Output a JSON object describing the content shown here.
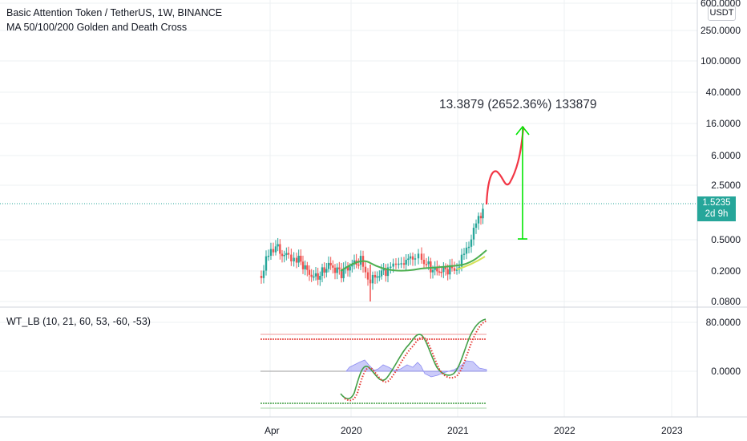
{
  "chart": {
    "title": "Basic Attention Token / TetherUS, 1W, BINANCE",
    "indicator_label": "MA 50/100/200 Golden and Death Cross",
    "oscillator_label": "WT_LB (10, 21, 60, 53, -60, -53)",
    "currency": "USDT",
    "current_price": "1.5235",
    "countdown": "2d 9h",
    "annotation": "13.3879 (2652.36%) 133879",
    "price_axis": [
      "600.0000",
      "250.0000",
      "100.0000",
      "40.0000",
      "16.0000",
      "6.0000",
      "2.5000",
      "0.5000",
      "0.2000",
      "0.0800"
    ],
    "osc_axis": [
      "80.0000",
      "0.0000"
    ],
    "time_axis": [
      "Apr",
      "2020",
      "2021",
      "2022",
      "2023"
    ]
  },
  "colors": {
    "up": "#26a69a",
    "down": "#ef5350",
    "ma_green": "#4caf50",
    "ma_yellow": "#d4e157",
    "projection": "#f23645",
    "arrow": "#00e600",
    "wave_green": "#43a047",
    "wave_red": "#e53935",
    "area": "#8c8cf2"
  }
}
